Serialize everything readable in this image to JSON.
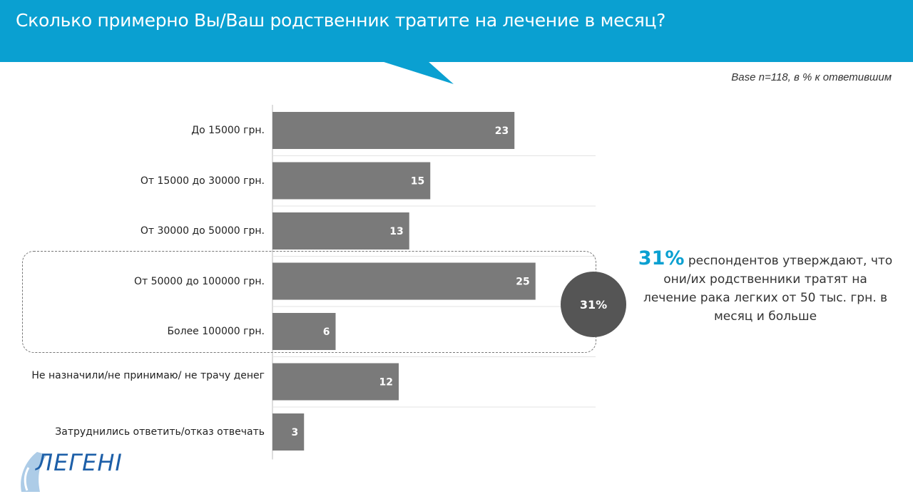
{
  "header": {
    "title": "Сколько примерно Вы/Ваш родственник тратите на лечение в месяц?",
    "accent_color": "#0aa0d1"
  },
  "base_note": "Base n=118,  в % к ответившим",
  "chart_data": {
    "type": "bar",
    "orientation": "horizontal",
    "categories": [
      "До 15000 грн.",
      "От 15000 до 30000 грн.",
      "От 30000 до 50000 грн.",
      "От 50000 до 100000 грн.",
      "Более 100000 грн.",
      "Не назначили/не принимаю/ не трачу денег",
      "Затруднились ответить/отказ отвечать"
    ],
    "values": [
      23,
      15,
      13,
      25,
      6,
      12,
      3
    ],
    "value_labels": [
      "23",
      "15",
      "13",
      "25",
      "6",
      "12",
      "3"
    ],
    "bar_color": "#7a7a7a",
    "xlim": [
      0,
      30
    ],
    "grid": true,
    "highlight_group": {
      "categories": [
        "От 50000 до 100000 грн.",
        "Более 100000 грн."
      ],
      "label": "31%"
    }
  },
  "callout": {
    "pct": "31%",
    "text": " респондентов утверждают, что они/их родственники тратят на лечение рака легких от 50 тыс. грн. в месяц и больше"
  },
  "logo": {
    "text": "ЛЕГЕНІ",
    "icon": "lungs-logo-icon"
  }
}
